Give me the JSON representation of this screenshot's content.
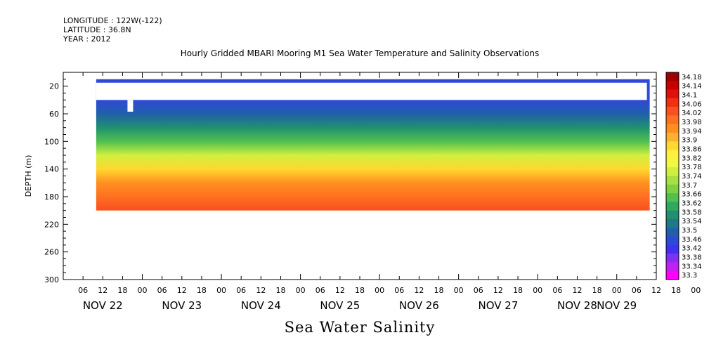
{
  "header": {
    "longitude": "LONGITUDE : 122W(-122)",
    "latitude": "LATITUDE : 36.8N",
    "year": "YEAR : 2012"
  },
  "chart_data": {
    "type": "heatmap",
    "title": "Hourly Gridded MBARI Mooring M1 Sea Water Temperature and Salinity Observations",
    "bottom_title": "Sea Water Salinity",
    "ylabel": "DEPTH (m)",
    "y_inverted": true,
    "ylim": [
      300,
      0
    ],
    "y_ticks": [
      "20",
      "60",
      "100",
      "140",
      "180",
      "220",
      "260",
      "300"
    ],
    "x_hour_ticks": [
      "06",
      "12",
      "18",
      "00",
      "06",
      "12",
      "18",
      "00",
      "06",
      "12",
      "18",
      "00",
      "06",
      "12",
      "18",
      "00",
      "06",
      "12",
      "18",
      "00",
      "06",
      "12",
      "18",
      "00",
      "06",
      "12",
      "18",
      "00",
      "06",
      "12",
      "18",
      "00"
    ],
    "x_date_labels": [
      "NOV 22",
      "NOV 23",
      "NOV 24",
      "NOV 25",
      "NOV 26",
      "NOV 27",
      "NOV 28",
      "NOV 29"
    ],
    "colorbar": {
      "levels": [
        "34.18",
        "34.14",
        "34.1",
        "34.06",
        "34.02",
        "33.98",
        "33.94",
        "33.9",
        "33.86",
        "33.82",
        "33.78",
        "33.74",
        "33.7",
        "33.66",
        "33.62",
        "33.58",
        "33.54",
        "33.5",
        "33.46",
        "33.42",
        "33.38",
        "33.34",
        "33.3"
      ],
      "colors": [
        "#a00000",
        "#c80000",
        "#e01010",
        "#f03010",
        "#f85020",
        "#ff7020",
        "#ff9020",
        "#ffb030",
        "#ffd830",
        "#fff040",
        "#f0f840",
        "#d0f040",
        "#a8e040",
        "#80d040",
        "#50c050",
        "#30a860",
        "#209070",
        "#207888",
        "#2060a8",
        "#3048d8",
        "#4030f0",
        "#8030f0",
        "#c020f0",
        "#ff00ff"
      ]
    },
    "data_time_range_hours_from_nov22_00": [
      10,
      178
    ],
    "depth_profile": [
      {
        "depth": 10,
        "salinity": 33.44
      },
      {
        "depth": 40,
        "salinity": 33.44
      },
      {
        "depth": 60,
        "salinity": 33.47
      },
      {
        "depth": 80,
        "salinity": 33.55
      },
      {
        "depth": 100,
        "salinity": 33.64
      },
      {
        "depth": 120,
        "salinity": 33.76
      },
      {
        "depth": 140,
        "salinity": 33.88
      },
      {
        "depth": 160,
        "salinity": 33.95
      },
      {
        "depth": 180,
        "salinity": 33.99
      },
      {
        "depth": 200,
        "salinity": 34.02
      }
    ],
    "missing_bands_depth": [
      [
        15,
        40
      ]
    ]
  }
}
